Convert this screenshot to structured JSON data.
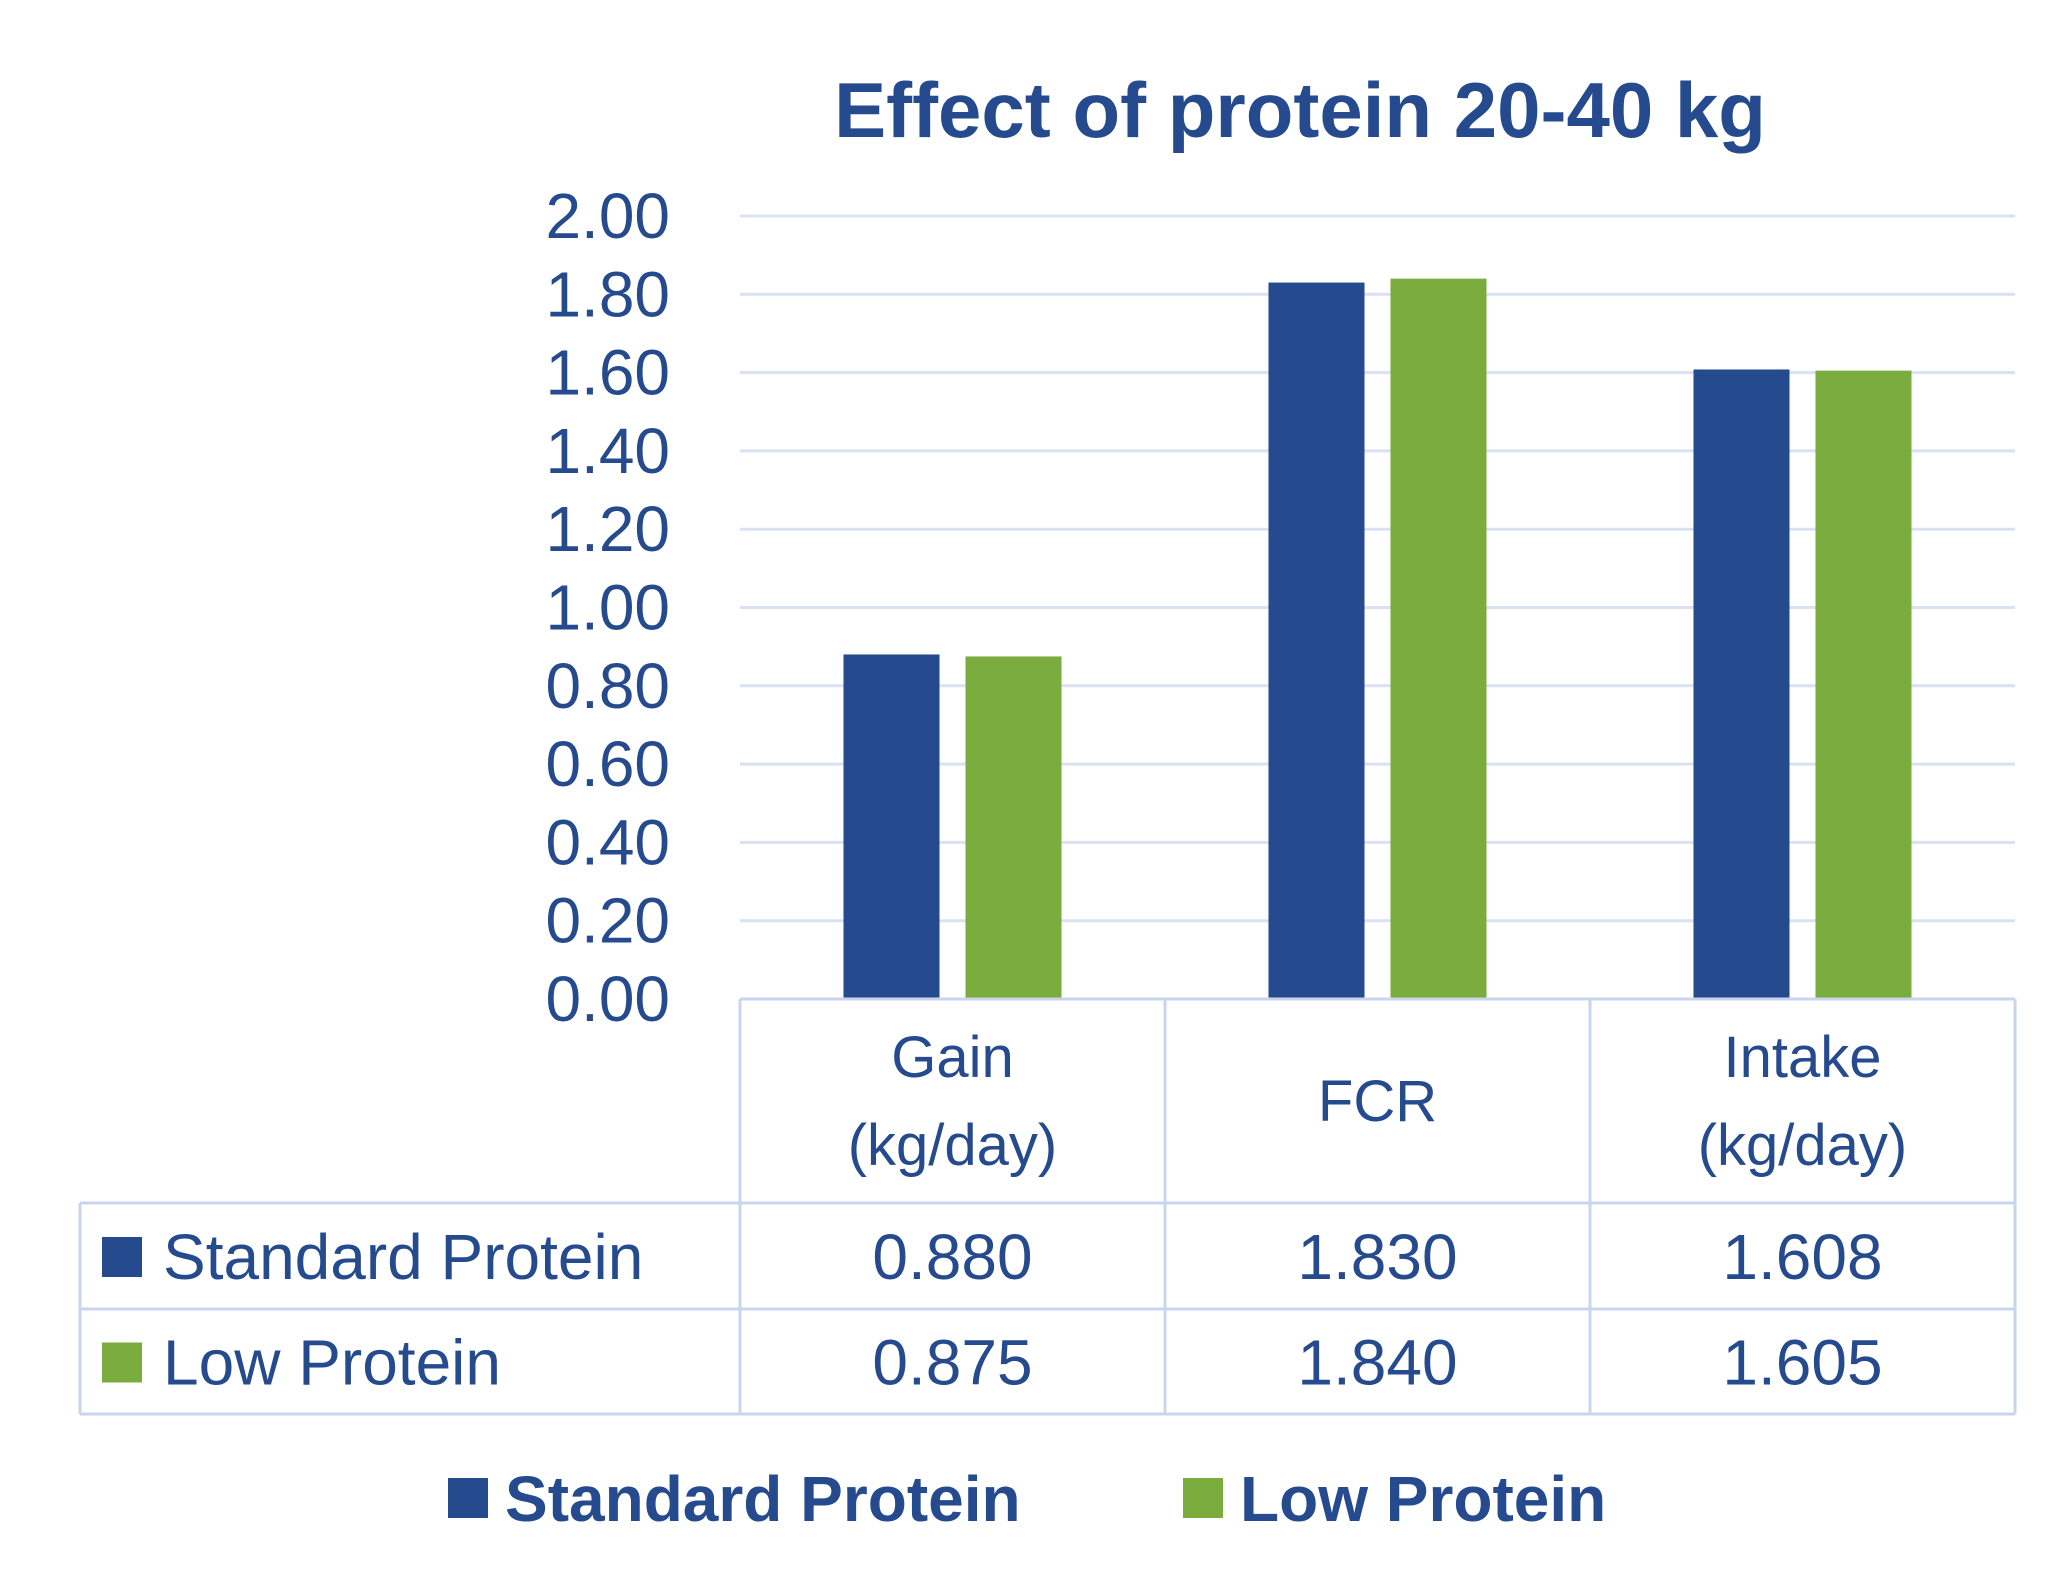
{
  "chart_data": {
    "type": "bar",
    "title": "Effect of protein 20-40 kg",
    "categories": [
      [
        "Gain",
        "(kg/day)"
      ],
      [
        "FCR"
      ],
      [
        "Intake",
        "(kg/day)"
      ]
    ],
    "series": [
      {
        "name": "Standard Protein",
        "color": "#254A8E",
        "values": [
          0.88,
          1.83,
          1.608
        ],
        "labels": [
          "0.880",
          "1.830",
          "1.608"
        ]
      },
      {
        "name": "Low Protein",
        "color": "#7AAC3E",
        "values": [
          0.875,
          1.84,
          1.605
        ],
        "labels": [
          "0.875",
          "1.840",
          "1.605"
        ]
      }
    ],
    "y_ticks": [
      "0.00",
      "0.20",
      "0.40",
      "0.60",
      "0.80",
      "1.00",
      "1.20",
      "1.40",
      "1.60",
      "1.80",
      "2.00"
    ],
    "ylim": [
      0,
      2
    ],
    "grid": true,
    "data_table": true,
    "legend_position": "bottom"
  }
}
